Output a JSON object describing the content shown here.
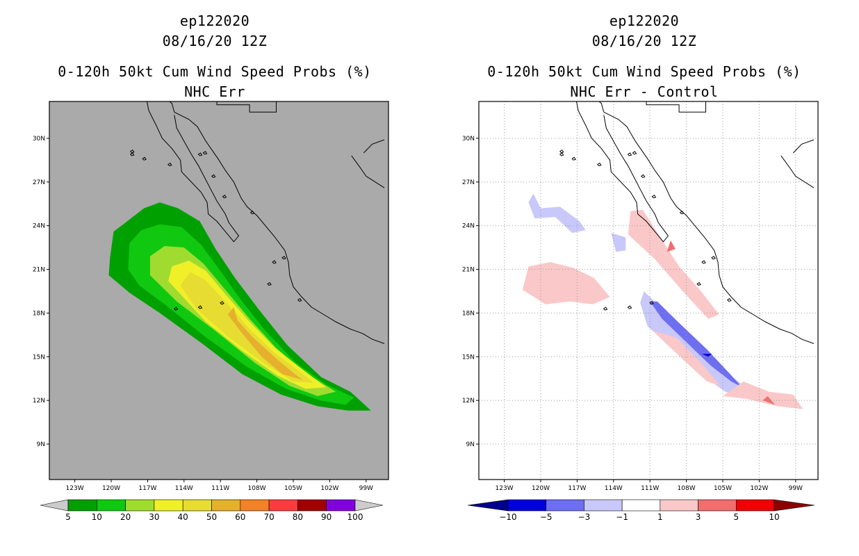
{
  "chart_data": [
    {
      "type": "heatmap",
      "panel": "left",
      "title": [
        "ep122020",
        "08/16/20 12Z",
        "0-120h 50kt Cum Wind Speed Probs (%)",
        "NHC Err"
      ],
      "xlabel": "",
      "ylabel": "",
      "xlim": [
        -125.5,
        -97.5
      ],
      "ylim": [
        7.0,
        33.0
      ],
      "xticks": [
        "123W",
        "120W",
        "117W",
        "114W",
        "111W",
        "108W",
        "105W",
        "102W",
        "99W"
      ],
      "yticks": [
        "9N",
        "12N",
        "15N",
        "18N",
        "21N",
        "24N",
        "27N",
        "30N"
      ],
      "background": "#aaaaaa",
      "colorbar": {
        "labels": [
          "5",
          "10",
          "20",
          "30",
          "40",
          "50",
          "60",
          "70",
          "80",
          "90",
          "100"
        ],
        "colors": [
          "#00a000",
          "#10c810",
          "#a0dc30",
          "#f0f028",
          "#e6dc32",
          "#e6af2d",
          "#f08228",
          "#fa3c3c",
          "#a00000",
          "#8200dc"
        ],
        "under": "#cccccc",
        "over": "#cccccc"
      },
      "contours": [
        {
          "level": 5,
          "color": "#00a000",
          "points": [
            [
              -120.2,
              20.6
            ],
            [
              -120.1,
              21.8
            ],
            [
              -119.8,
              23.6
            ],
            [
              -119.0,
              24.1
            ],
            [
              -117.3,
              25.2
            ],
            [
              -116.0,
              25.6
            ],
            [
              -114.5,
              25.2
            ],
            [
              -112.7,
              24.3
            ],
            [
              -111.4,
              22.4
            ],
            [
              -109.8,
              20.4
            ],
            [
              -107.8,
              18.2
            ],
            [
              -105.5,
              15.8
            ],
            [
              -102.7,
              13.6
            ],
            [
              -100.3,
              12.6
            ],
            [
              -98.6,
              11.3
            ],
            [
              -100.5,
              11.3
            ],
            [
              -103.0,
              11.6
            ],
            [
              -106.0,
              12.4
            ],
            [
              -109.2,
              13.8
            ],
            [
              -112.5,
              15.9
            ],
            [
              -116.0,
              18.0
            ],
            [
              -118.5,
              19.4
            ]
          ]
        },
        {
          "level": 10,
          "color": "#10c810",
          "points": [
            [
              -118.6,
              21.0
            ],
            [
              -118.5,
              22.8
            ],
            [
              -117.5,
              23.7
            ],
            [
              -116.0,
              24.1
            ],
            [
              -114.2,
              23.9
            ],
            [
              -112.6,
              22.7
            ],
            [
              -111.1,
              21.0
            ],
            [
              -109.4,
              19.0
            ],
            [
              -107.3,
              16.8
            ],
            [
              -104.8,
              14.6
            ],
            [
              -102.3,
              13.1
            ],
            [
              -100.0,
              12.2
            ],
            [
              -100.7,
              11.7
            ],
            [
              -102.8,
              12.0
            ],
            [
              -105.6,
              12.8
            ],
            [
              -108.8,
              14.3
            ],
            [
              -112.3,
              16.4
            ],
            [
              -115.6,
              18.6
            ],
            [
              -117.7,
              19.9
            ]
          ]
        },
        {
          "level": 20,
          "color": "#a0dc30",
          "points": [
            [
              -116.8,
              20.6
            ],
            [
              -116.8,
              21.9
            ],
            [
              -115.6,
              22.6
            ],
            [
              -114.0,
              22.5
            ],
            [
              -112.4,
              21.4
            ],
            [
              -110.6,
              19.6
            ],
            [
              -108.6,
              17.6
            ],
            [
              -106.4,
              15.6
            ],
            [
              -104.2,
              14.0
            ],
            [
              -101.5,
              12.6
            ],
            [
              -103.0,
              12.3
            ],
            [
              -105.3,
              13.0
            ],
            [
              -108.2,
              14.6
            ],
            [
              -111.3,
              16.7
            ],
            [
              -114.6,
              18.8
            ]
          ]
        },
        {
          "level": 30,
          "color": "#f0f028",
          "points": [
            [
              -115.3,
              20.2
            ],
            [
              -115.0,
              21.2
            ],
            [
              -113.6,
              21.6
            ],
            [
              -112.2,
              20.9
            ],
            [
              -110.6,
              19.3
            ],
            [
              -108.6,
              17.4
            ],
            [
              -106.5,
              15.6
            ],
            [
              -104.5,
              14.3
            ],
            [
              -102.3,
              12.9
            ],
            [
              -104.0,
              12.8
            ],
            [
              -106.3,
              13.7
            ],
            [
              -109.2,
              15.4
            ],
            [
              -112.2,
              17.4
            ]
          ]
        },
        {
          "level": 40,
          "color": "#e6dc32",
          "points": [
            [
              -114.3,
              19.9
            ],
            [
              -113.5,
              20.8
            ],
            [
              -112.3,
              20.3
            ],
            [
              -110.7,
              18.9
            ],
            [
              -108.7,
              17.0
            ],
            [
              -106.6,
              15.3
            ],
            [
              -104.5,
              14.0
            ],
            [
              -103.3,
              13.2
            ],
            [
              -105.0,
              13.3
            ],
            [
              -107.5,
              14.6
            ],
            [
              -110.4,
              16.4
            ],
            [
              -113.0,
              18.3
            ]
          ]
        },
        {
          "level": 50,
          "color": "#e6af2d",
          "points": [
            [
              -109.9,
              18.4
            ],
            [
              -109.6,
              17.5
            ],
            [
              -108.3,
              16.3
            ],
            [
              -106.3,
              14.8
            ],
            [
              -104.7,
              13.7
            ],
            [
              -104.2,
              13.4
            ],
            [
              -105.9,
              13.8
            ],
            [
              -107.6,
              15.0
            ],
            [
              -109.3,
              16.7
            ],
            [
              -110.4,
              17.9
            ]
          ]
        }
      ]
    },
    {
      "type": "heatmap",
      "panel": "right",
      "title": [
        "ep122020",
        "08/16/20 12Z",
        "0-120h 50kt Cum Wind Speed Probs (%)",
        "NHC Err - Control"
      ],
      "xlabel": "",
      "ylabel": "",
      "xlim": [
        -125.5,
        -97.5
      ],
      "ylim": [
        7.0,
        33.0
      ],
      "xticks": [
        "123W",
        "120W",
        "117W",
        "114W",
        "111W",
        "108W",
        "105W",
        "102W",
        "99W"
      ],
      "yticks": [
        "9N",
        "12N",
        "15N",
        "18N",
        "21N",
        "24N",
        "27N",
        "30N"
      ],
      "background": "#ffffff",
      "grid": "dotted",
      "colorbar": {
        "labels": [
          "-10",
          "-5",
          "-3",
          "-1",
          "1",
          "3",
          "5",
          "10"
        ],
        "colors": [
          "#0000dc",
          "#6e6ef0",
          "#c8c8fa",
          "#ffffff",
          "#fac8c8",
          "#f06e6e",
          "#f00000"
        ],
        "under": "#00008c",
        "over": "#8c0000"
      },
      "contours": [
        {
          "level": -1,
          "color": "#c8c8fa",
          "points": [
            [
              -111.8,
              18.7
            ],
            [
              -111.2,
              17.1
            ],
            [
              -109.0,
              15.4
            ],
            [
              -106.8,
              13.8
            ],
            [
              -104.8,
              12.6
            ],
            [
              -103.3,
              12.2
            ],
            [
              -102.8,
              12.7
            ],
            [
              -104.2,
              13.6
            ],
            [
              -106.2,
              15.0
            ],
            [
              -108.5,
              17.0
            ],
            [
              -110.5,
              18.7
            ],
            [
              -111.5,
              19.5
            ]
          ]
        },
        {
          "level": -3,
          "color": "#6e6ef0",
          "points": [
            [
              -111.0,
              18.8
            ],
            [
              -110.0,
              17.6
            ],
            [
              -108.0,
              16.0
            ],
            [
              -106.0,
              14.4
            ],
            [
              -104.3,
              13.3
            ],
            [
              -103.4,
              12.9
            ],
            [
              -104.5,
              13.9
            ],
            [
              -106.3,
              15.5
            ],
            [
              -108.7,
              17.4
            ],
            [
              -110.4,
              18.8
            ]
          ]
        },
        {
          "level": -5,
          "color": "#0000dc",
          "points": [
            [
              -106.7,
              15.2
            ],
            [
              -106.2,
              15.0
            ],
            [
              -105.9,
              15.2
            ]
          ]
        },
        {
          "level": -1,
          "color": "#c8c8fa",
          "points": [
            [
              -120.6,
              26.2
            ],
            [
              -120.0,
              25.2
            ],
            [
              -118.4,
              25.3
            ],
            [
              -116.8,
              24.3
            ],
            [
              -116.3,
              23.7
            ],
            [
              -117.4,
              23.5
            ],
            [
              -118.8,
              24.6
            ],
            [
              -120.5,
              24.5
            ],
            [
              -121.0,
              25.6
            ]
          ]
        },
        {
          "level": -1,
          "color": "#c8c8fa",
          "points": [
            [
              -114.2,
              23.5
            ],
            [
              -113.8,
              22.2
            ],
            [
              -113.0,
              22.3
            ],
            [
              -113.0,
              23.2
            ]
          ]
        },
        {
          "level": 1,
          "color": "#fac8c8",
          "points": [
            [
              -112.6,
              25.0
            ],
            [
              -111.6,
              25.1
            ],
            [
              -110.3,
              23.4
            ],
            [
              -108.6,
              21.2
            ],
            [
              -106.8,
              19.5
            ],
            [
              -105.3,
              17.9
            ],
            [
              -106.2,
              17.6
            ],
            [
              -108.3,
              19.5
            ],
            [
              -110.6,
              21.7
            ],
            [
              -112.8,
              23.4
            ]
          ]
        },
        {
          "level": 1,
          "color": "#fac8c8",
          "points": [
            [
              -121.5,
              19.6
            ],
            [
              -121.0,
              21.2
            ],
            [
              -119.2,
              21.5
            ],
            [
              -117.3,
              21.1
            ],
            [
              -115.6,
              20.4
            ],
            [
              -114.3,
              19.1
            ],
            [
              -115.7,
              18.6
            ],
            [
              -117.6,
              18.8
            ],
            [
              -119.6,
              18.6
            ]
          ]
        },
        {
          "level": 1,
          "color": "#fac8c8",
          "points": [
            [
              -110.8,
              16.8
            ],
            [
              -109.8,
              16.0
            ],
            [
              -108.0,
              14.6
            ],
            [
              -106.3,
              13.3
            ],
            [
              -105.2,
              13.0
            ],
            [
              -106.6,
              14.4
            ],
            [
              -108.8,
              16.3
            ]
          ]
        },
        {
          "level": 1,
          "color": "#fac8c8",
          "points": [
            [
              -105.0,
              12.3
            ],
            [
              -103.0,
              12.1
            ],
            [
              -100.5,
              11.6
            ],
            [
              -98.4,
              11.4
            ],
            [
              -99.2,
              12.4
            ],
            [
              -101.2,
              12.6
            ],
            [
              -103.3,
              13.3
            ]
          ]
        },
        {
          "level": 3,
          "color": "#f06e6e",
          "points": [
            [
              -109.3,
              23.0
            ],
            [
              -108.9,
              22.4
            ],
            [
              -109.6,
              22.2
            ]
          ]
        },
        {
          "level": 3,
          "color": "#f06e6e",
          "points": [
            [
              -101.7,
              12.0
            ],
            [
              -100.7,
              11.7
            ],
            [
              -101.3,
              12.3
            ]
          ]
        }
      ]
    }
  ]
}
